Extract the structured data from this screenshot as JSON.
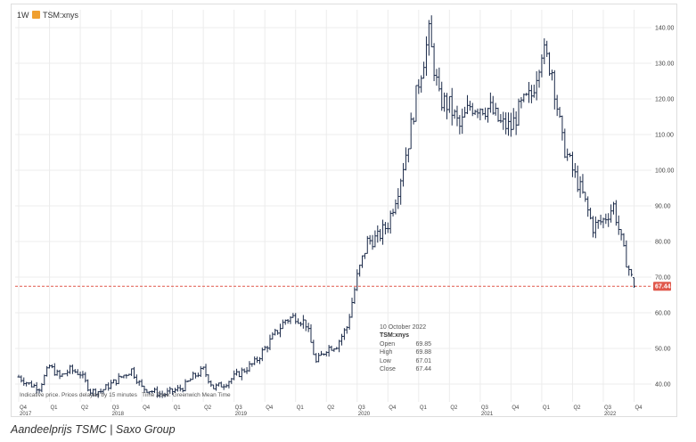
{
  "header": {
    "interval": "1W",
    "symbol": "TSM:xnys"
  },
  "ohlc": {
    "date": "10 October 2022",
    "symbol": "TSM:xnys",
    "open_label": "Open",
    "open": "69.85",
    "high_label": "High",
    "high": "69.88",
    "low_label": "Low",
    "low": "67.01",
    "close_label": "Close",
    "close": "67.44"
  },
  "footnote": "Indicative price. Prices delayed by 15 minutes   Time Zone: Greenwich Mean Time",
  "caption": "Aandeelprijs TSMC | Saxo Group",
  "colors": {
    "bars": "#1b2a49",
    "last_price": "#e0584c",
    "grid": "#ececec"
  },
  "chart_data": {
    "type": "ohlc",
    "ylim": [
      35,
      145
    ],
    "yticks": [
      40,
      50,
      60,
      70,
      80,
      90,
      100,
      110,
      120,
      130,
      140
    ],
    "ytick_labels": [
      "40.00",
      "50.00",
      "60.00",
      "70.00",
      "80.00",
      "90.00",
      "100.00",
      "110.00",
      "120.00",
      "130.00",
      "140.00"
    ],
    "last_price": 67.44,
    "last_price_label": "67.44",
    "x_quarter_labels": [
      "Q4",
      "Q1",
      "Q2",
      "Q3",
      "Q4",
      "Q1",
      "Q2",
      "Q3",
      "Q4",
      "Q1",
      "Q2",
      "Q3",
      "Q4",
      "Q1",
      "Q2",
      "Q3",
      "Q4",
      "Q1",
      "Q2",
      "Q3",
      "Q4"
    ],
    "x_year_labels": [
      "2017",
      "2018",
      "2019",
      "2020",
      "2021",
      "2022"
    ],
    "series": [
      {
        "values": [
          {
            "date": "2017-10",
            "price": 42
          },
          {
            "date": "2017-11",
            "price": 40
          },
          {
            "date": "2017-12",
            "price": 39
          },
          {
            "date": "2018-01",
            "price": 45
          },
          {
            "date": "2018-02",
            "price": 42
          },
          {
            "date": "2018-03",
            "price": 44
          },
          {
            "date": "2018-04",
            "price": 43
          },
          {
            "date": "2018-05",
            "price": 38
          },
          {
            "date": "2018-06",
            "price": 38
          },
          {
            "date": "2018-07",
            "price": 40
          },
          {
            "date": "2018-08",
            "price": 42
          },
          {
            "date": "2018-09",
            "price": 44
          },
          {
            "date": "2018-10",
            "price": 39
          },
          {
            "date": "2018-11",
            "price": 38
          },
          {
            "date": "2018-12",
            "price": 37
          },
          {
            "date": "2019-01",
            "price": 38
          },
          {
            "date": "2019-02",
            "price": 39
          },
          {
            "date": "2019-03",
            "price": 42
          },
          {
            "date": "2019-04",
            "price": 44
          },
          {
            "date": "2019-05",
            "price": 39
          },
          {
            "date": "2019-06",
            "price": 40
          },
          {
            "date": "2019-07",
            "price": 42
          },
          {
            "date": "2019-08",
            "price": 44
          },
          {
            "date": "2019-09",
            "price": 46
          },
          {
            "date": "2019-10",
            "price": 50
          },
          {
            "date": "2019-11",
            "price": 54
          },
          {
            "date": "2019-12",
            "price": 58
          },
          {
            "date": "2020-01",
            "price": 59
          },
          {
            "date": "2020-02",
            "price": 57
          },
          {
            "date": "2020-03",
            "price": 46
          },
          {
            "date": "2020-04",
            "price": 50
          },
          {
            "date": "2020-05",
            "price": 51
          },
          {
            "date": "2020-06",
            "price": 56
          },
          {
            "date": "2020-07",
            "price": 70
          },
          {
            "date": "2020-08",
            "price": 80
          },
          {
            "date": "2020-09",
            "price": 81
          },
          {
            "date": "2020-10",
            "price": 85
          },
          {
            "date": "2020-11",
            "price": 95
          },
          {
            "date": "2020-12",
            "price": 108
          },
          {
            "date": "2021-01",
            "price": 125
          },
          {
            "date": "2021-02",
            "price": 138
          },
          {
            "date": "2021-03",
            "price": 120
          },
          {
            "date": "2021-04",
            "price": 118
          },
          {
            "date": "2021-05",
            "price": 112
          },
          {
            "date": "2021-06",
            "price": 118
          },
          {
            "date": "2021-07",
            "price": 118
          },
          {
            "date": "2021-08",
            "price": 117
          },
          {
            "date": "2021-09",
            "price": 113
          },
          {
            "date": "2021-10",
            "price": 112
          },
          {
            "date": "2021-11",
            "price": 118
          },
          {
            "date": "2021-12",
            "price": 121
          },
          {
            "date": "2022-01",
            "price": 134
          },
          {
            "date": "2022-02",
            "price": 128
          },
          {
            "date": "2022-03",
            "price": 108
          },
          {
            "date": "2022-04",
            "price": 100
          },
          {
            "date": "2022-05",
            "price": 93
          },
          {
            "date": "2022-06",
            "price": 84
          },
          {
            "date": "2022-07",
            "price": 86
          },
          {
            "date": "2022-08",
            "price": 90
          },
          {
            "date": "2022-09",
            "price": 77
          },
          {
            "date": "2022-10",
            "price": 67.44
          }
        ]
      }
    ]
  }
}
